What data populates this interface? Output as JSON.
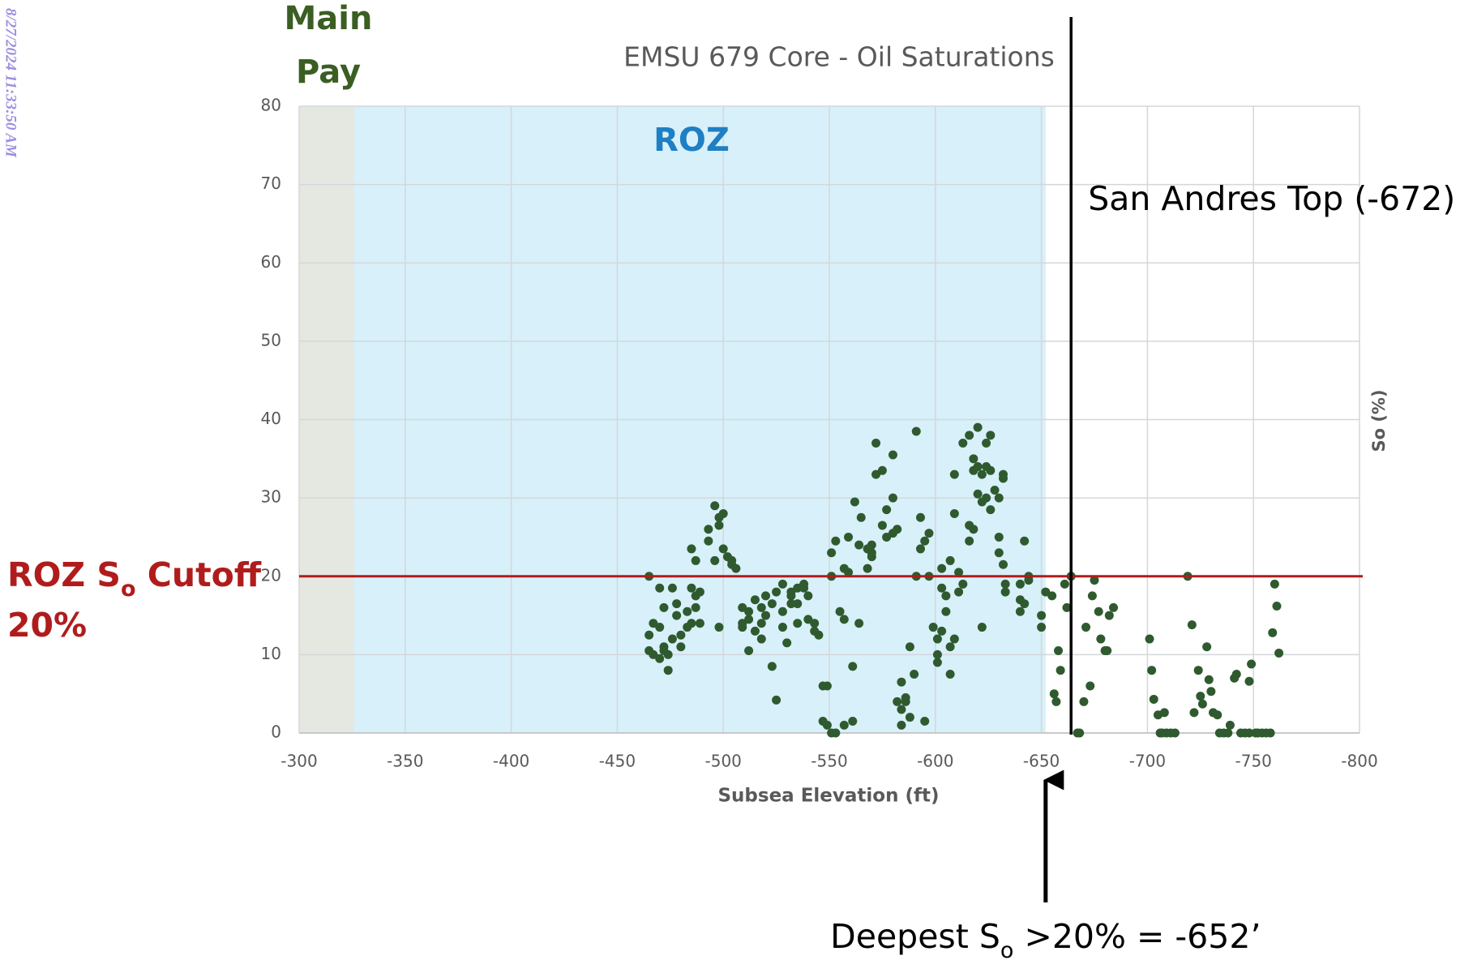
{
  "timestamp": "8/27/2024 11:33:50 AM",
  "chart_data": {
    "type": "scatter",
    "title": "EMSU 679 Core - Oil Saturations",
    "x_label": "Subsea Elevation (ft)",
    "y_label": "So (%)",
    "color": "#2f5a2f",
    "grid": true,
    "xlim": [
      -300,
      -800
    ],
    "ylim": [
      0,
      80
    ],
    "xticks": [
      -300,
      -350,
      -400,
      -450,
      -500,
      -550,
      -600,
      -650,
      -700,
      -750,
      -800
    ],
    "yticks": [
      0,
      10,
      20,
      30,
      40,
      50,
      60,
      70,
      80
    ],
    "regions": [
      {
        "label_lines": [
          "Main",
          "Pay"
        ],
        "from": -300,
        "to": -326,
        "color": "#e4e8e1",
        "label_color": "#3b5e23"
      },
      {
        "label_lines": [
          "ROZ"
        ],
        "from": -326,
        "to": -652,
        "color": "#d8f0f9",
        "label_color": "#1f7fc4"
      }
    ],
    "vertical_line": {
      "x": -664,
      "label": "San Andres Top (-672)",
      "color": "#000000"
    },
    "cutoff_line": {
      "y": 20,
      "color": "#b01c1c",
      "label_parts": [
        "ROZ S",
        "o",
        " Cutoff"
      ],
      "label_line2": "20%"
    },
    "arrow_annotation": {
      "x": -652,
      "label_parts": [
        "Deepest S",
        "o",
        " >20% = -652’"
      ]
    },
    "x": [
      -465,
      -465,
      -465,
      -467,
      -467,
      -470,
      -470,
      -470,
      -472,
      -472,
      -472,
      -474,
      -474,
      -476,
      -476,
      -478,
      -478,
      -480,
      -480,
      -483,
      -483,
      -485,
      -485,
      -485,
      -487,
      -487,
      -487,
      -489,
      -489,
      -493,
      -493,
      -496,
      -496,
      -498,
      -498,
      -498,
      -500,
      -500,
      -502,
      -504,
      -504,
      -506,
      -509,
      -509,
      -509,
      -512,
      -512,
      -512,
      -515,
      -515,
      -518,
      -518,
      -518,
      -520,
      -520,
      -523,
      -523,
      -525,
      -525,
      -528,
      -528,
      -528,
      -530,
      -532,
      -532,
      -532,
      -535,
      -535,
      -535,
      -538,
      -538,
      -540,
      -540,
      -543,
      -543,
      -545,
      -547,
      -547,
      -549,
      -549,
      -551,
      -551,
      -551,
      -553,
      -553,
      -555,
      -557,
      -557,
      -557,
      -559,
      -559,
      -561,
      -561,
      -562,
      -564,
      -564,
      -565,
      -568,
      -568,
      -570,
      -570,
      -570,
      -572,
      -572,
      -575,
      -575,
      -577,
      -577,
      -580,
      -580,
      -580,
      -582,
      -582,
      -584,
      -584,
      -584,
      -586,
      -586,
      -588,
      -588,
      -590,
      -591,
      -591,
      -593,
      -593,
      -595,
      -595,
      -597,
      -597,
      -599,
      -601,
      -601,
      -601,
      -603,
      -603,
      -603,
      -605,
      -605,
      -607,
      -607,
      -607,
      -609,
      -609,
      -609,
      -611,
      -611,
      -613,
      -613,
      -616,
      -616,
      -616,
      -618,
      -618,
      -618,
      -620,
      -620,
      -620,
      -622,
      -622,
      -622,
      -624,
      -624,
      -624,
      -626,
      -626,
      -626,
      -628,
      -630,
      -630,
      -630,
      -632,
      -632,
      -632,
      -633,
      -633,
      -640,
      -640,
      -640,
      -642,
      -642,
      -644,
      -644,
      -650,
      -650,
      -652,
      -655,
      -656,
      -657,
      -658,
      -659,
      -661,
      -662,
      -664,
      -667,
      -668,
      -670,
      -671,
      -673,
      -674,
      -675,
      -677,
      -678,
      -680,
      -681,
      -682,
      -684,
      -701,
      -702,
      -703,
      -705,
      -706,
      -708,
      -709,
      -711,
      -713,
      -707,
      -719,
      -721,
      -722,
      -724,
      -725,
      -726,
      -728,
      -729,
      -730,
      -731,
      -733,
      -734,
      -736,
      -738,
      -739,
      -741,
      -742,
      -744,
      -746,
      -748,
      -749,
      -748,
      -751,
      -752,
      -754,
      -756,
      -758,
      -759,
      -760,
      -761,
      -762
    ],
    "values": [
      20,
      12.5,
      10.5,
      14,
      10,
      13.5,
      9.5,
      18.5,
      16,
      11,
      10.5,
      8,
      10,
      18.5,
      12,
      16.5,
      15,
      11,
      12.5,
      15.5,
      13.5,
      23.5,
      18.5,
      14,
      22,
      17.5,
      16,
      14,
      18,
      26,
      24.5,
      29,
      22,
      27.5,
      26.5,
      13.5,
      23.5,
      28,
      22.5,
      21.5,
      22,
      21,
      14,
      16,
      13.5,
      10.5,
      15.5,
      14.5,
      17,
      13,
      12,
      16,
      14,
      17.5,
      15,
      16.5,
      8.5,
      4.2,
      18,
      13.5,
      15.5,
      19,
      11.5,
      18,
      17.5,
      16.5,
      18.5,
      16.5,
      14,
      18.5,
      19,
      14.5,
      17.5,
      14,
      13,
      12.5,
      6,
      1.5,
      6,
      1,
      23,
      20,
      0,
      24.5,
      0,
      15.5,
      21,
      14.5,
      1,
      25,
      20.5,
      1.5,
      8.5,
      29.5,
      14,
      24,
      27.5,
      21,
      23.5,
      24,
      22.5,
      23,
      33,
      37,
      26.5,
      33.5,
      25,
      28.5,
      30,
      35.5,
      25.5,
      26,
      4,
      3,
      1,
      6.5,
      4.5,
      4,
      11,
      2,
      7.5,
      20,
      38.5,
      27.5,
      23.5,
      24.5,
      1.5,
      25.5,
      20,
      13.5,
      12,
      10,
      9,
      18.5,
      21,
      13,
      17.5,
      15.5,
      7.5,
      11,
      22,
      33,
      28,
      12,
      18,
      20.5,
      37,
      19,
      26.5,
      38,
      24.5,
      26,
      35,
      33.5,
      34,
      30.5,
      39,
      13.5,
      29.5,
      33,
      34,
      30,
      37,
      28.5,
      38,
      33.5,
      31,
      25,
      30,
      23,
      21.5,
      32.5,
      33,
      19,
      18,
      19,
      17,
      15.5,
      24.5,
      16.5,
      19.5,
      20,
      13.5,
      15,
      18,
      17.5,
      5,
      4,
      10.5,
      8,
      19,
      16,
      20,
      0,
      0,
      4,
      13.5,
      6,
      17.5,
      19.5,
      15.5,
      12,
      10.5,
      10.5,
      15,
      16,
      12,
      8,
      4.3,
      2.3,
      0,
      2.6,
      0,
      0,
      0,
      0,
      20,
      13.8,
      2.6,
      8,
      4.7,
      3.7,
      11,
      6.8,
      5.3,
      2.6,
      2.3,
      0,
      0,
      0,
      1,
      7,
      7.5,
      0,
      0,
      0,
      8.8,
      6.6,
      0,
      0,
      0,
      0,
      0,
      12.8,
      19,
      16.2,
      10.2
    ]
  }
}
